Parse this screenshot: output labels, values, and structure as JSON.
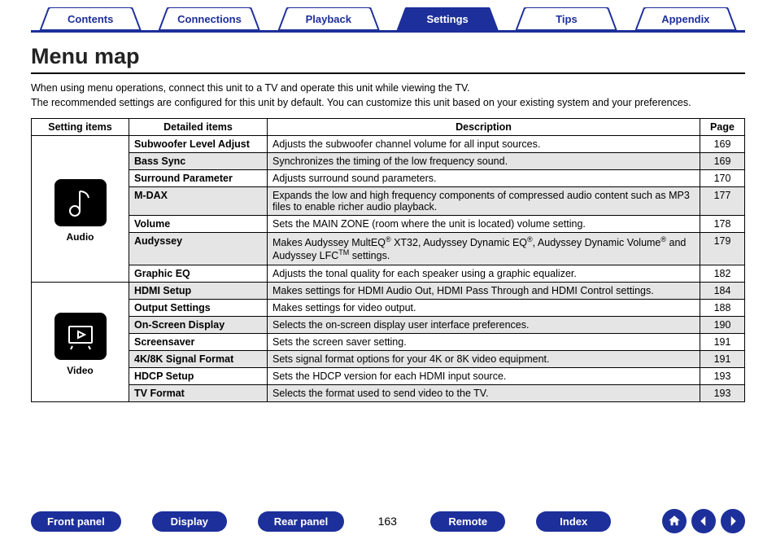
{
  "colors": {
    "brand": "#1d2f9a",
    "shade": "#e5e5e5"
  },
  "tabs": [
    {
      "label": "Contents",
      "active": false
    },
    {
      "label": "Connections",
      "active": false
    },
    {
      "label": "Playback",
      "active": false
    },
    {
      "label": "Settings",
      "active": true
    },
    {
      "label": "Tips",
      "active": false
    },
    {
      "label": "Appendix",
      "active": false
    }
  ],
  "page_title": "Menu map",
  "intro_line1": "When using menu operations, connect this unit to a TV and operate this unit while viewing the TV.",
  "intro_line2": "The recommended settings are configured for this unit by default. You can customize this unit based on your existing system and your preferences.",
  "table": {
    "headers": {
      "c1": "Setting items",
      "c2": "Detailed items",
      "c3": "Description",
      "c4": "Page"
    },
    "groups": [
      {
        "label": "Audio",
        "icon": "audio",
        "rows": [
          {
            "detail": "Subwoofer Level Adjust",
            "desc": "Adjusts the subwoofer channel volume for all input sources.",
            "page": "169",
            "shaded": false
          },
          {
            "detail": "Bass Sync",
            "desc": "Synchronizes the timing of the low frequency sound.",
            "page": "169",
            "shaded": true
          },
          {
            "detail": "Surround Parameter",
            "desc": "Adjusts surround sound parameters.",
            "page": "170",
            "shaded": false
          },
          {
            "detail": "M-DAX",
            "desc": "Expands the low and high frequency components of compressed audio content such as MP3 files to enable richer audio playback.",
            "page": "177",
            "shaded": true
          },
          {
            "detail": "Volume",
            "desc": "Sets the MAIN ZONE (room where the unit is located) volume setting.",
            "page": "178",
            "shaded": false
          },
          {
            "detail": "Audyssey",
            "desc_html": "Makes Audyssey MultEQ<sup>®</sup> XT32, Audyssey Dynamic EQ<sup>®</sup>, Audyssey Dynamic Volume<sup>®</sup> and Audyssey LFC<sup>TM</sup> settings.",
            "page": "179",
            "shaded": true
          },
          {
            "detail": "Graphic EQ",
            "desc": "Adjusts the tonal quality for each speaker using a graphic equalizer.",
            "page": "182",
            "shaded": false
          }
        ]
      },
      {
        "label": "Video",
        "icon": "video",
        "rows": [
          {
            "detail": "HDMI Setup",
            "desc": "Makes settings for HDMI Audio Out, HDMI Pass Through and HDMI Control settings.",
            "page": "184",
            "shaded": true
          },
          {
            "detail": "Output Settings",
            "desc": "Makes settings for video output.",
            "page": "188",
            "shaded": false
          },
          {
            "detail": "On-Screen Display",
            "desc": "Selects the on-screen display user interface preferences.",
            "page": "190",
            "shaded": true
          },
          {
            "detail": "Screensaver",
            "desc": "Sets the screen saver setting.",
            "page": "191",
            "shaded": false
          },
          {
            "detail": "4K/8K Signal Format",
            "desc": "Sets signal format options for your 4K or 8K video equipment.",
            "page": "191",
            "shaded": true
          },
          {
            "detail": "HDCP Setup",
            "desc": "Sets the HDCP version for each HDMI input source.",
            "page": "193",
            "shaded": false
          },
          {
            "detail": "TV Format",
            "desc": "Selects the format used to send video to the TV.",
            "page": "193",
            "shaded": true
          }
        ]
      }
    ]
  },
  "bottom": {
    "buttons": [
      "Front panel",
      "Display",
      "Rear panel"
    ],
    "page_number": "163",
    "buttons2": [
      "Remote",
      "Index"
    ]
  }
}
